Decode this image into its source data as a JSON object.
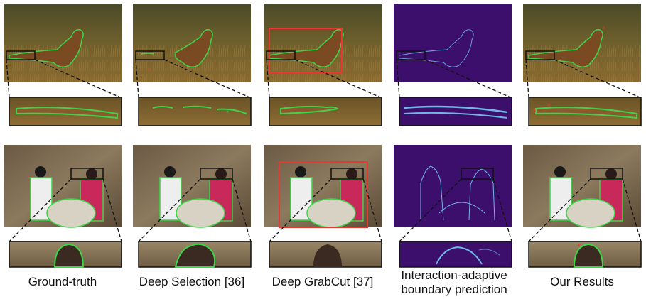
{
  "columns": [
    {
      "key": "ground-truth",
      "label": "Ground-truth"
    },
    {
      "key": "deep-selection",
      "label": "Deep Selection [36]"
    },
    {
      "key": "deep-grabcut",
      "label": "Deep GrabCut [37]"
    },
    {
      "key": "boundary",
      "label_line1": "Interaction-adaptive",
      "label_line2": "boundary prediction"
    },
    {
      "key": "ours",
      "label": "Our Results"
    }
  ],
  "colors": {
    "mask_outline": "#3fd34a",
    "bbox": "#e8382f",
    "click": "#e8382f",
    "boundary_bg": "#3b0f6b",
    "boundary_line": "#6fb8e6"
  }
}
